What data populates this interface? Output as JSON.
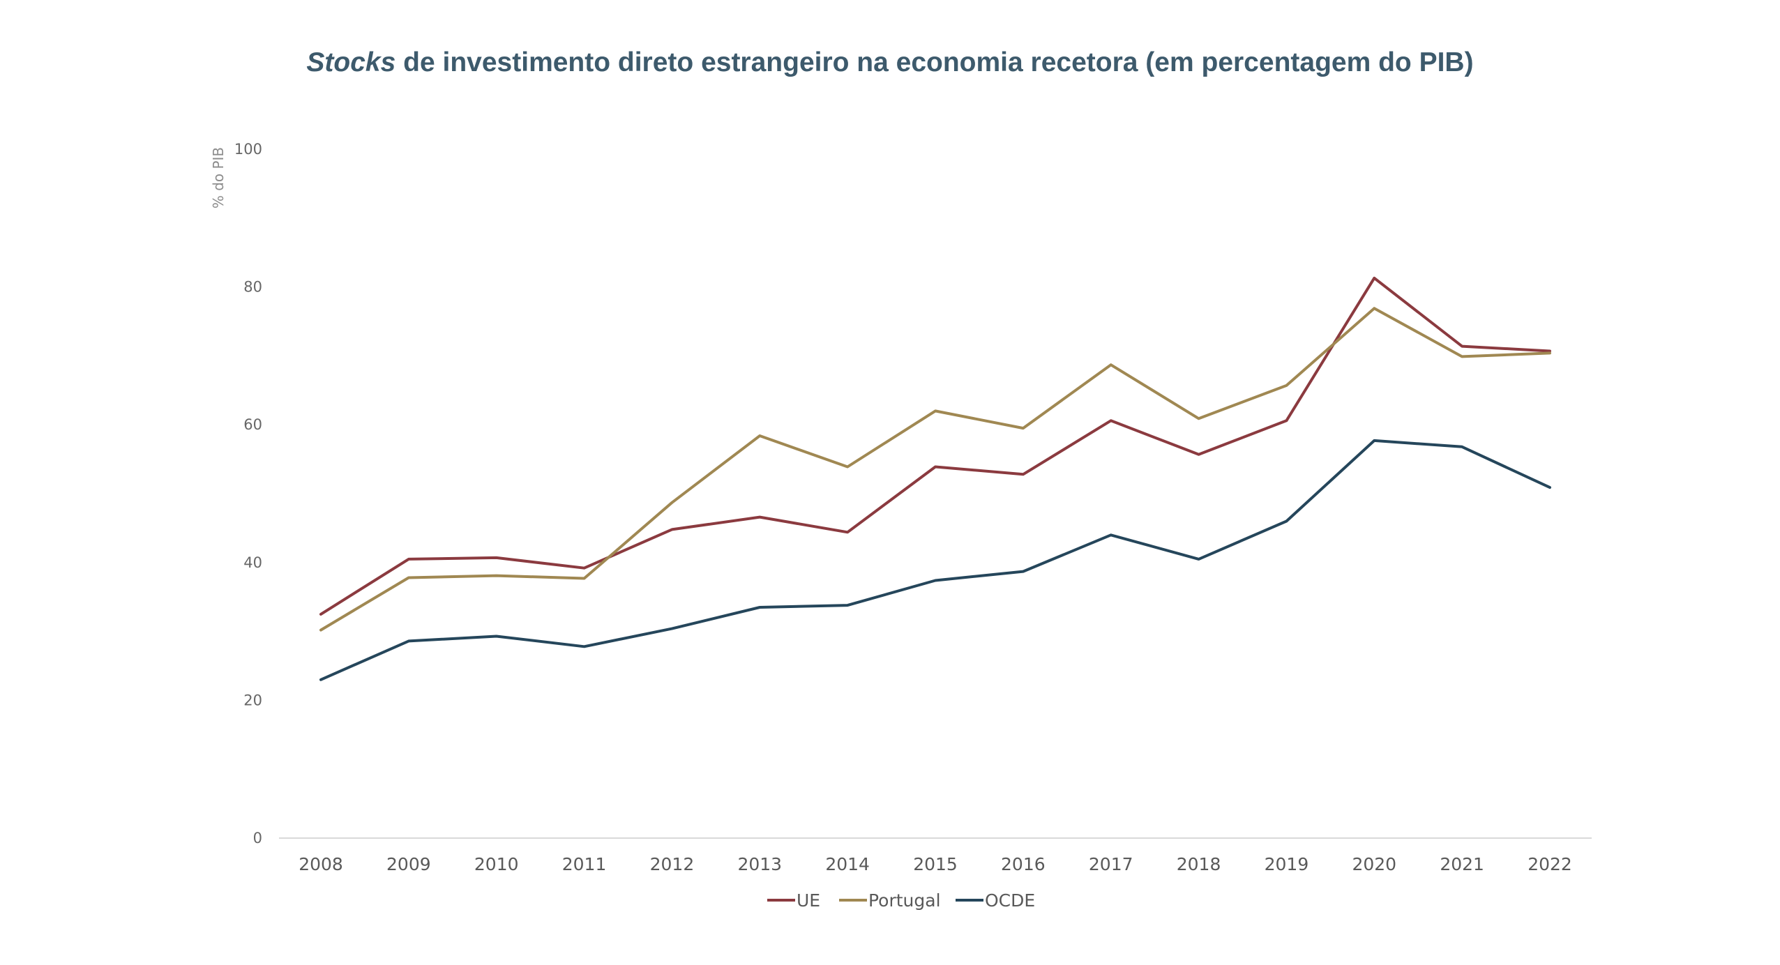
{
  "chart_data": {
    "type": "line",
    "title_italic": "Stocks",
    "title_rest": " de investimento direto estrangeiro na economia recetora (em percentagem do PIB)",
    "ylabel": "% do PIB",
    "xlabel": "",
    "ylim": [
      0,
      100
    ],
    "yticks": [
      "0",
      "20",
      "40",
      "60",
      "80",
      "100"
    ],
    "x": [
      "2008",
      "2009",
      "2010",
      "2011",
      "2012",
      "2013",
      "2014",
      "2015",
      "2016",
      "2017",
      "2018",
      "2019",
      "2020",
      "2021",
      "2022"
    ],
    "grid": false,
    "legend_position": "bottom-center",
    "series": [
      {
        "name": "UE",
        "color": "#8b3a3f",
        "values": [
          32.5,
          40.5,
          40.7,
          39.2,
          44.8,
          46.6,
          44.4,
          53.9,
          52.8,
          60.6,
          55.7,
          60.6,
          81.3,
          71.4,
          70.7
        ]
      },
      {
        "name": "Portugal",
        "color": "#a08852",
        "values": [
          30.2,
          37.8,
          38.1,
          37.7,
          48.7,
          58.4,
          53.9,
          62.0,
          59.5,
          68.7,
          60.9,
          65.7,
          76.9,
          69.9,
          70.4
        ]
      },
      {
        "name": "OCDE",
        "color": "#25465b",
        "values": [
          23.0,
          28.6,
          29.3,
          27.8,
          30.4,
          33.5,
          33.8,
          37.4,
          38.7,
          44.0,
          40.5,
          46.0,
          57.7,
          56.8,
          50.9
        ]
      }
    ]
  }
}
